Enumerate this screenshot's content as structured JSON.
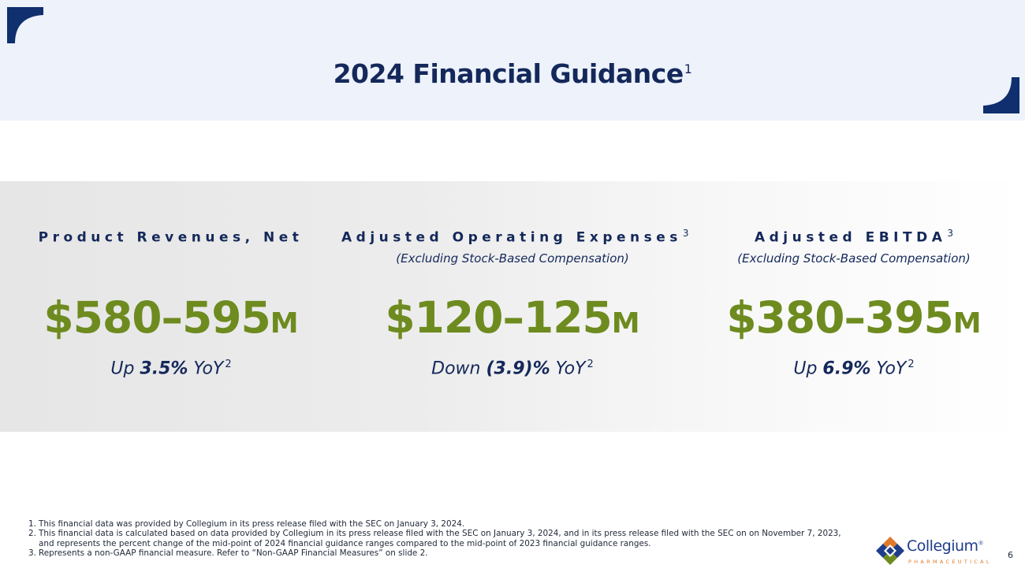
{
  "slide": {
    "title": "2024 Financial Guidance",
    "title_footnote": "1",
    "page_number": "6"
  },
  "metrics": [
    {
      "title": "Product Revenues, Net",
      "title_footnote": "",
      "subtitle": "",
      "value": "$580–595",
      "unit": "M",
      "change_prefix": "Up ",
      "change_value": "3.5%",
      "change_suffix": " YoY",
      "change_footnote": "2"
    },
    {
      "title": "Adjusted Operating Expenses",
      "title_footnote": "3",
      "subtitle": "(Excluding Stock-Based Compensation)",
      "value": "$120–125",
      "unit": "M",
      "change_prefix": "Down ",
      "change_value": "(3.9)%",
      "change_suffix": " YoY",
      "change_footnote": "2"
    },
    {
      "title": "Adjusted EBITDA",
      "title_footnote": "3",
      "subtitle": "(Excluding Stock-Based Compensation)",
      "value": "$380–395",
      "unit": "M",
      "change_prefix": "Up ",
      "change_value": "6.9%",
      "change_suffix": " YoY",
      "change_footnote": "2"
    }
  ],
  "footnotes": [
    {
      "num": "1.",
      "text": "This financial data was provided by Collegium in its press release filed with the SEC on January 3, 2024."
    },
    {
      "num": "2.",
      "text": "This financial data is calculated based on data provided by Collegium in its press release filed with the SEC on January 3, 2024, and in its press release filed with the SEC on on November 7, 2023, and represents the percent change of the mid-point of 2024 financial guidance ranges compared to the mid-point of 2023 financial guidance ranges."
    },
    {
      "num": "3.",
      "text": "Represents a non-GAAP financial measure. Refer to “Non-GAAP Financial Measures” on slide 2."
    }
  ],
  "logo": {
    "name": "Collegium",
    "registered": "®",
    "tagline": "PHARMACEUTICAL",
    "icon": "collegium-diamond-logo-icon"
  },
  "colors": {
    "navy": "#14285a",
    "green": "#6e8b1f",
    "header_band": "#edf2fb",
    "corner": "#0f2f6e",
    "logo_orange": "#e07a2a",
    "logo_blue": "#1f3d8a"
  }
}
